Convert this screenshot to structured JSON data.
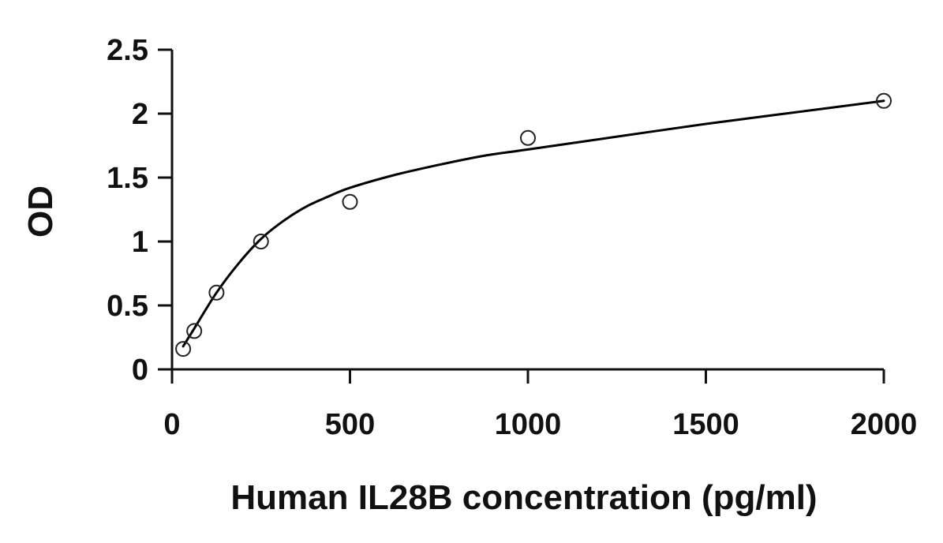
{
  "chart_data": {
    "type": "scatter",
    "title": "",
    "xlabel": "Human IL28B concentration (pg/ml)",
    "ylabel": "OD",
    "xlim": [
      0,
      2000
    ],
    "ylim": [
      0,
      2.5
    ],
    "x_ticks": [
      0,
      500,
      1000,
      1500,
      2000
    ],
    "y_ticks": [
      0,
      0.5,
      1,
      1.5,
      2,
      2.5
    ],
    "x_tick_labels": [
      "0",
      "500",
      "1000",
      "1500",
      "2000"
    ],
    "y_tick_labels": [
      "0",
      "0.5",
      "1",
      "1.5",
      "2",
      "2.5"
    ],
    "grid": false,
    "legend": "none",
    "series": [
      {
        "marker": "open-circle",
        "x": [
          31.25,
          62.5,
          125,
          250,
          500,
          1000,
          2000
        ],
        "y": [
          0.16,
          0.3,
          0.6,
          1.0,
          1.31,
          1.81,
          2.1
        ]
      }
    ],
    "fit_curve": {
      "type": "smooth-fit",
      "x": [
        31.25,
        62.5,
        125,
        187.5,
        250,
        312.5,
        375,
        437.5,
        500,
        625,
        750,
        875,
        1000,
        1250,
        1500,
        1750,
        2000
      ],
      "y": [
        0.18,
        0.32,
        0.6,
        0.83,
        1.02,
        1.16,
        1.27,
        1.35,
        1.42,
        1.52,
        1.6,
        1.67,
        1.72,
        1.82,
        1.92,
        2.01,
        2.1
      ]
    },
    "colors": {
      "axis": "#111111",
      "curve": "#000000",
      "marker_stroke": "#222222",
      "background": "#ffffff"
    }
  }
}
